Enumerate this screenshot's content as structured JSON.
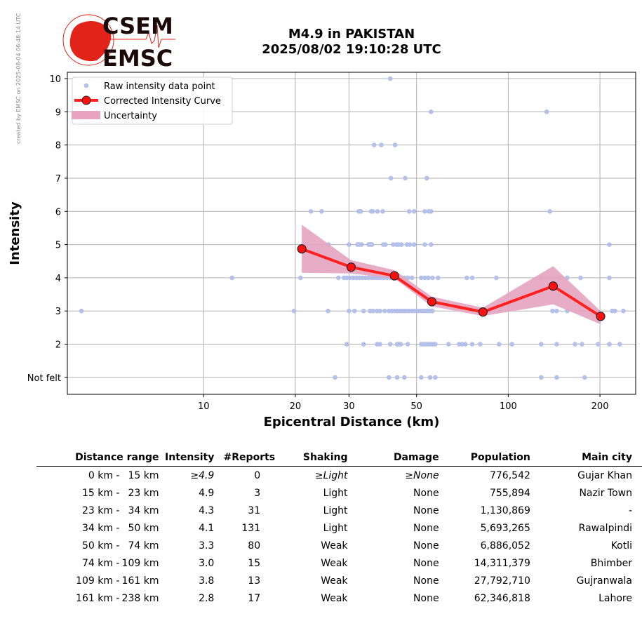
{
  "watermark": "created by EMSC on 2025-08-04 06:48:14 UTC",
  "logo": {
    "top": "CSEM",
    "bottom": "EMSC"
  },
  "title": {
    "line1": "M4.9 in PAKISTAN",
    "line2": "2025/08/02 19:10:28 UTC"
  },
  "colors": {
    "raw": "#b4bfea",
    "curve": "#ff2020",
    "marker": "#ff1010",
    "band": "#e6a4c0",
    "logo": "#e2231a"
  },
  "chart_data": {
    "type": "line",
    "xscale": "log",
    "xlabel": "Epicentral Distance (km)",
    "ylabel": "Intensity",
    "xlim": [
      3.57,
      262
    ],
    "ylim": [
      0.49,
      10.19
    ],
    "xticks": [
      {
        "v": 10,
        "label": "10"
      },
      {
        "v": 20,
        "label": "20"
      },
      {
        "v": 30,
        "label": "30"
      },
      {
        "v": 50,
        "label": "50"
      },
      {
        "v": 100,
        "label": "100"
      },
      {
        "v": 200,
        "label": "200"
      }
    ],
    "yticks": [
      {
        "v": 1,
        "label": "Not felt"
      },
      {
        "v": 2,
        "label": "2"
      },
      {
        "v": 3,
        "label": "3"
      },
      {
        "v": 4,
        "label": "4"
      },
      {
        "v": 5,
        "label": "5"
      },
      {
        "v": 6,
        "label": "6"
      },
      {
        "v": 7,
        "label": "7"
      },
      {
        "v": 8,
        "label": "8"
      },
      {
        "v": 9,
        "label": "9"
      },
      {
        "v": 10,
        "label": "10"
      }
    ],
    "legend": {
      "position": "top-left",
      "items": [
        "Raw intensity data point",
        "Corrected Intensity Curve",
        "Uncertainty"
      ]
    },
    "curve": {
      "x": [
        21.0,
        30.5,
        42.3,
        56.1,
        82.6,
        140.4,
        201
      ],
      "y": [
        4.87,
        4.32,
        4.06,
        3.28,
        2.97,
        3.75,
        2.84
      ]
    },
    "band": {
      "x": [
        21.0,
        30.5,
        42.3,
        56.1,
        82.6,
        140.4,
        201
      ],
      "upper": [
        5.6,
        4.53,
        4.23,
        3.43,
        3.1,
        4.35,
        3.0
      ],
      "lower": [
        4.15,
        4.13,
        3.98,
        3.14,
        2.85,
        3.2,
        2.6
      ]
    },
    "raw": [
      {
        "i": 10,
        "d": [
          41.0
        ]
      },
      {
        "i": 9,
        "d": [
          55.8,
          133.7
        ]
      },
      {
        "i": 8,
        "d": [
          36.3,
          38.3,
          42.5
        ]
      },
      {
        "i": 7,
        "d": [
          41.2,
          45.9,
          54.0
        ]
      },
      {
        "i": 6,
        "d": [
          22.5,
          24.4,
          32.3,
          32.8,
          35.5,
          35.9,
          37.2,
          38.7,
          47.3,
          49.1,
          53.2,
          54.9,
          55.8,
          137
        ]
      },
      {
        "i": 5,
        "d": [
          25.7,
          30.0,
          32.0,
          32.5,
          33.0,
          34.8,
          35.3,
          35.7,
          38.9,
          39.5,
          41.9,
          43.0,
          43.7,
          44.6,
          46.5,
          47.5,
          49.1,
          53.2,
          55.8,
          214.8
        ]
      },
      {
        "i": 4,
        "d": [
          12.4,
          20.8,
          27.7,
          28.9,
          29.5,
          30.2,
          31.0,
          31.8,
          32.5,
          33.2,
          34.0,
          34.8,
          35.6,
          36.4,
          37.2,
          38.0,
          39.0,
          40.0,
          41.0,
          42.0,
          43.2,
          44.4,
          45.6,
          46.8,
          48.3,
          51.8,
          53.2,
          54.6,
          56.4,
          58.8,
          73.1,
          76.2,
          91.4,
          128.3,
          147.3,
          156.2,
          172.7,
          214.8
        ]
      },
      {
        "i": 3,
        "d": [
          3.97,
          19.8,
          25.6,
          30.0,
          31.3,
          33.5,
          35.2,
          36.0,
          37.1,
          37.9,
          39.3,
          40.6,
          41.5,
          42.4,
          43.2,
          44.0,
          44.8,
          45.6,
          46.4,
          47.2,
          48.3,
          49.2,
          50.1,
          51.0,
          51.8,
          52.6,
          53.4,
          54.2,
          55.0,
          55.8,
          56.4,
          139.7,
          144.2,
          156.2,
          219.3,
          224.0,
          238.7
        ]
      },
      {
        "i": 2,
        "d": [
          29.5,
          33.5,
          37.1,
          37.9,
          41.0,
          43.2,
          43.8,
          44.4,
          46.8,
          51.8,
          52.6,
          53.4,
          54.2,
          55.0,
          55.8,
          56.6,
          57.6,
          63.7,
          69.0,
          70.5,
          72.3,
          76.2,
          80.9,
          93.3,
          102.8,
          128.3,
          144.2,
          165.6,
          174.6,
          197.2,
          214.8,
          232.4
        ]
      },
      {
        "i": 1,
        "d": [
          27.0,
          40.6,
          43.2,
          45.6,
          51.8,
          55.4,
          57.6,
          128.3,
          144.2,
          178.2
        ]
      }
    ]
  },
  "table": {
    "headers": [
      "Distance range",
      "Intensity",
      "#Reports",
      "Shaking",
      "Damage",
      "Population",
      "Main city"
    ],
    "rows": [
      {
        "from": "0 km -",
        "to": "15 km",
        "intensity": "≥4.9",
        "reports": "0",
        "shaking": "≥Light",
        "damage": "≥None",
        "population": "776,542",
        "city": "Gujar Khan"
      },
      {
        "from": "15 km -",
        "to": "23 km",
        "intensity": "4.9",
        "reports": "3",
        "shaking": "Light",
        "damage": "None",
        "population": "755,894",
        "city": "Nazir Town"
      },
      {
        "from": "23 km -",
        "to": "34 km",
        "intensity": "4.3",
        "reports": "31",
        "shaking": "Light",
        "damage": "None",
        "population": "1,130,869",
        "city": "-"
      },
      {
        "from": "34 km -",
        "to": "50 km",
        "intensity": "4.1",
        "reports": "131",
        "shaking": "Light",
        "damage": "None",
        "population": "5,693,265",
        "city": "Rawalpindi"
      },
      {
        "from": "50 km -",
        "to": "74 km",
        "intensity": "3.3",
        "reports": "80",
        "shaking": "Weak",
        "damage": "None",
        "population": "6,886,052",
        "city": "Kotli"
      },
      {
        "from": "74 km -",
        "to": "109 km",
        "intensity": "3.0",
        "reports": "15",
        "shaking": "Weak",
        "damage": "None",
        "population": "14,311,379",
        "city": "Bhimber"
      },
      {
        "from": "109 km -",
        "to": "161 km",
        "intensity": "3.8",
        "reports": "13",
        "shaking": "Weak",
        "damage": "None",
        "population": "27,792,710",
        "city": "Gujranwala"
      },
      {
        "from": "161 km -",
        "to": "238 km",
        "intensity": "2.8",
        "reports": "17",
        "shaking": "Weak",
        "damage": "None",
        "population": "62,346,818",
        "city": "Lahore"
      }
    ]
  }
}
